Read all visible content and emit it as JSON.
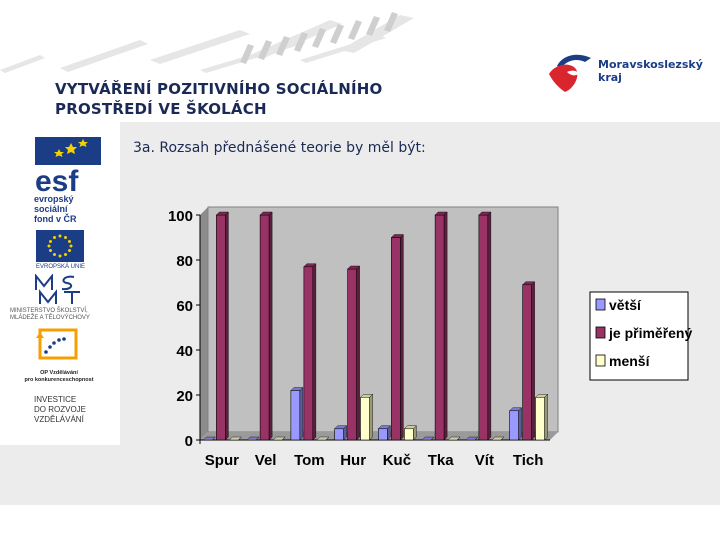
{
  "header": {
    "title_line1": "VYTVÁŘENÍ POZITIVNÍHO SOCIÁLNÍHO",
    "title_line2": "PROSTŘEDÍ VE ŠKOLÁCH"
  },
  "region_logo": {
    "line1": "Moravskoslezský",
    "line2": "kraj"
  },
  "sidebar_logos": {
    "esf_line1": "evropský",
    "esf_line2": "sociální",
    "esf_line3": "fond v ČR",
    "eu_label": "EVROPSKÁ UNIE",
    "msmt_line1": "MINISTERSTVO ŠKOLSTVÍ,",
    "msmt_line2": "MLÁDEŽE A TĚLOVÝCHOVY",
    "op_line1": "OP Vzdělávání",
    "op_line2": "pro konkurenceschopnost",
    "inv_line1": "INVESTICE",
    "inv_line2": "DO ROZVOJE",
    "inv_line3": "VZDĚLÁVÁNÍ"
  },
  "subtitle": "3a. Rozsah přednášené teorie by měl být:",
  "chart_data": {
    "type": "bar",
    "title": "",
    "xlabel": "",
    "ylabel": "",
    "categories": [
      "Spur",
      "Vel",
      "Tom",
      "Hur",
      "Kuč",
      "Tka",
      "Vít",
      "Tich"
    ],
    "series": [
      {
        "name": "větší",
        "color": "#9999ff",
        "values": [
          0,
          0,
          22,
          5,
          5,
          0,
          0,
          13
        ]
      },
      {
        "name": "je přiměřený",
        "color": "#993366",
        "values": [
          100,
          100,
          77,
          76,
          90,
          100,
          100,
          69
        ]
      },
      {
        "name": "menší",
        "color": "#ffffcc",
        "values": [
          0,
          0,
          0,
          19,
          5,
          0,
          0,
          19
        ]
      }
    ],
    "ylim": [
      0,
      100
    ],
    "yticks": [
      0,
      20,
      40,
      60,
      80,
      100
    ],
    "grid": false,
    "legend": "right"
  }
}
